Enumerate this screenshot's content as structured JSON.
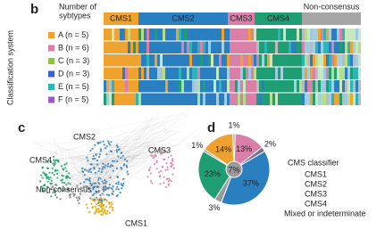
{
  "chart_data": [
    {
      "type": "heatmap",
      "panel": "b",
      "legend_title": [
        "Number of",
        "sybtypes"
      ],
      "y_label": "Classification system",
      "categories": [
        "A (n = 5)",
        "B (n = 6)",
        "C (n = 3)",
        "D (n = 3)",
        "E (n = 5)",
        "F (n = 5)"
      ],
      "colors": [
        "#f0a22e",
        "#d97fa8",
        "#8cc63f",
        "#3d5fd6",
        "#2bb5b8",
        "#9b59c6"
      ],
      "groups": [
        {
          "name": "CMS1",
          "color": "#f0a22e"
        },
        {
          "name": "CMS2",
          "color": "#2a7fc1"
        },
        {
          "name": "CMS3",
          "color": "#d97fa8"
        },
        {
          "name": "CMS4",
          "color": "#1f9e74"
        },
        {
          "name": "Non-consensus",
          "color": "#a6a6a6"
        }
      ]
    },
    {
      "type": "network",
      "panel": "c",
      "labels": [
        {
          "text": "CMS2",
          "color": "#1f4e9a"
        },
        {
          "text": "CMS3",
          "color": "#d97fa8"
        },
        {
          "text": "CMS4",
          "color": "#1f9e74"
        },
        {
          "text": "Non-consensus",
          "color": "#444444"
        },
        {
          "text": "CMS1",
          "color": "#e0a800"
        }
      ]
    },
    {
      "type": "pie",
      "panel": "d",
      "values": [
        1,
        13,
        2,
        37,
        3,
        23,
        1,
        14
      ],
      "value_labels": [
        "1%",
        "13%",
        "2%",
        "37%",
        "3%",
        "23%",
        "1%",
        "14%"
      ],
      "colors": [
        "#9a9a9a",
        "#d97fa8",
        "#6f6f8f",
        "#2a7fc1",
        "#9a9a9a",
        "#1f9e74",
        "#9a9a9a",
        "#f0a22e"
      ],
      "center": 7,
      "center_label": "7%",
      "center_color": "#9a9a9a",
      "legend_title": "CMS classifier",
      "legend": [
        {
          "name": "CMS1",
          "color": "#f0a22e"
        },
        {
          "name": "CMS2",
          "color": "#2a7fc1"
        },
        {
          "name": "CMS3",
          "color": "#d97fa8"
        },
        {
          "name": "CMS4",
          "color": "#1f9e74"
        },
        {
          "name": "Mixed or indeterminate",
          "color": "#777777"
        }
      ]
    }
  ]
}
